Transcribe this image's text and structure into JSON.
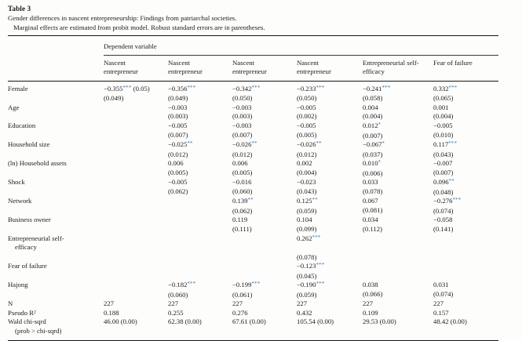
{
  "page": {
    "title": "Table 3",
    "subtitle": "Gender differences in nascent entrepreneurship: Findings from patriarchal societies.",
    "note": "Marginal effects are estimated from probit model. Robust standard errors are in parentheses."
  },
  "accent_color": "#2d77b4",
  "chart_data": {
    "type": "table",
    "group_header": "Dependent variable",
    "columns": [
      "Nascent entrepreneur",
      "Nascent entrepreneur",
      "Nascent entrepreneur",
      "Nascent entrepreneur",
      "Entrepreneurial self-efficacy",
      "Fear of failure"
    ],
    "rows": [
      {
        "label": [
          "Female"
        ],
        "cells": [
          [
            "−0.355*** (0.05)",
            "(0.049)"
          ],
          [
            "−0.356***",
            "(0.049)"
          ],
          [
            "−0.342***",
            "(0.050)"
          ],
          [
            "−0.233***",
            "(0.050)"
          ],
          [
            "−0.241***",
            "(0.058)"
          ],
          [
            "0.332***",
            "(0.065)"
          ]
        ]
      },
      {
        "label": [
          "Age"
        ],
        "cells": [
          null,
          [
            "−0.003",
            "(0.003)"
          ],
          [
            "−0.003",
            "(0.003)"
          ],
          [
            "−0.005",
            "(0.002)"
          ],
          [
            "0.004",
            "(0.004)"
          ],
          [
            "0.001",
            "(0.004)"
          ]
        ]
      },
      {
        "label": [
          "Education"
        ],
        "cells": [
          null,
          [
            "−0.005",
            "(0.007)"
          ],
          [
            "−0.003",
            "(0.007)"
          ],
          [
            "−0.005",
            "(0.005)"
          ],
          [
            "0.012*",
            "(0.007)"
          ],
          [
            "−0.005",
            "(0.010)"
          ]
        ]
      },
      {
        "label": [
          "Household size"
        ],
        "cells": [
          null,
          [
            "−0.025**",
            "(0.012)"
          ],
          [
            "−0.026**",
            "(0.012)"
          ],
          [
            "−0.026**",
            "(0.012)"
          ],
          [
            "−0.067*",
            "(0.037)"
          ],
          [
            "0.117***",
            "(0.043)"
          ]
        ]
      },
      {
        "label": [
          "(ln) Household assets"
        ],
        "cells": [
          null,
          [
            "0.006",
            "(0.005)"
          ],
          [
            "0.006",
            "(0.005)"
          ],
          [
            "0.002",
            "(0.004)"
          ],
          [
            "0.010*",
            "(0.006)"
          ],
          [
            "−0.007",
            "(0.007)"
          ]
        ]
      },
      {
        "label": [
          "Shock"
        ],
        "cells": [
          null,
          [
            "−0.005",
            "(0.062)"
          ],
          [
            "−0.016",
            "(0.060)"
          ],
          [
            "−0.023",
            "(0.043)"
          ],
          [
            "0.033",
            "(0.078)"
          ],
          [
            "0.096**",
            "(0.048)"
          ]
        ]
      },
      {
        "label": [
          "Network"
        ],
        "cells": [
          null,
          null,
          [
            "0.139**",
            "(0.062)"
          ],
          [
            "0.125**",
            "(0.059)"
          ],
          [
            "0.067",
            "(0.081)"
          ],
          [
            "−0.276***",
            "(0.074)"
          ]
        ]
      },
      {
        "label": [
          "Business owner"
        ],
        "cells": [
          null,
          null,
          [
            "0.119",
            "(0.111)"
          ],
          [
            "0.104",
            "(0.099)"
          ],
          [
            "0.034",
            "(0.112)"
          ],
          [
            "−0.058",
            "(0.141)"
          ]
        ]
      },
      {
        "label": [
          "Entrepreneurial self-",
          "efficacy"
        ],
        "cells": [
          null,
          null,
          null,
          [
            "0.262***",
            "",
            "(0.078)"
          ],
          null,
          null
        ]
      },
      {
        "label": [
          "Fear of failure"
        ],
        "cells": [
          null,
          null,
          null,
          [
            "−0.123***",
            "(0.045)"
          ],
          null,
          null
        ]
      },
      {
        "label": [
          "Hajong"
        ],
        "cells": [
          null,
          [
            "−0.182***",
            "(0.060)"
          ],
          [
            "−0.199***",
            "(0.061)"
          ],
          [
            "−0.190***",
            "(0.059)"
          ],
          [
            "0.038",
            "(0.066)"
          ],
          [
            "0.031",
            "(0.074)"
          ]
        ]
      },
      {
        "label": [
          "N"
        ],
        "cells": [
          [
            "227"
          ],
          [
            "227"
          ],
          [
            "227"
          ],
          [
            "227"
          ],
          [
            "227"
          ],
          [
            "227"
          ]
        ]
      },
      {
        "label": [
          "Pseudo R²"
        ],
        "cells": [
          [
            "0.188"
          ],
          [
            "0.255"
          ],
          [
            "0.276"
          ],
          [
            "0.432"
          ],
          [
            "0.109"
          ],
          [
            "0.157"
          ]
        ]
      },
      {
        "label": [
          "Wald chi-sqrd",
          "(prob > chi-sqrd)"
        ],
        "cells": [
          [
            "46.00 (0.00)"
          ],
          [
            "62.38 (0.00)"
          ],
          [
            "67.61 (0.00)"
          ],
          [
            "105.54 (0.00)"
          ],
          [
            "29.53 (0.00)"
          ],
          [
            "48.42 (0.00)"
          ]
        ]
      }
    ]
  }
}
